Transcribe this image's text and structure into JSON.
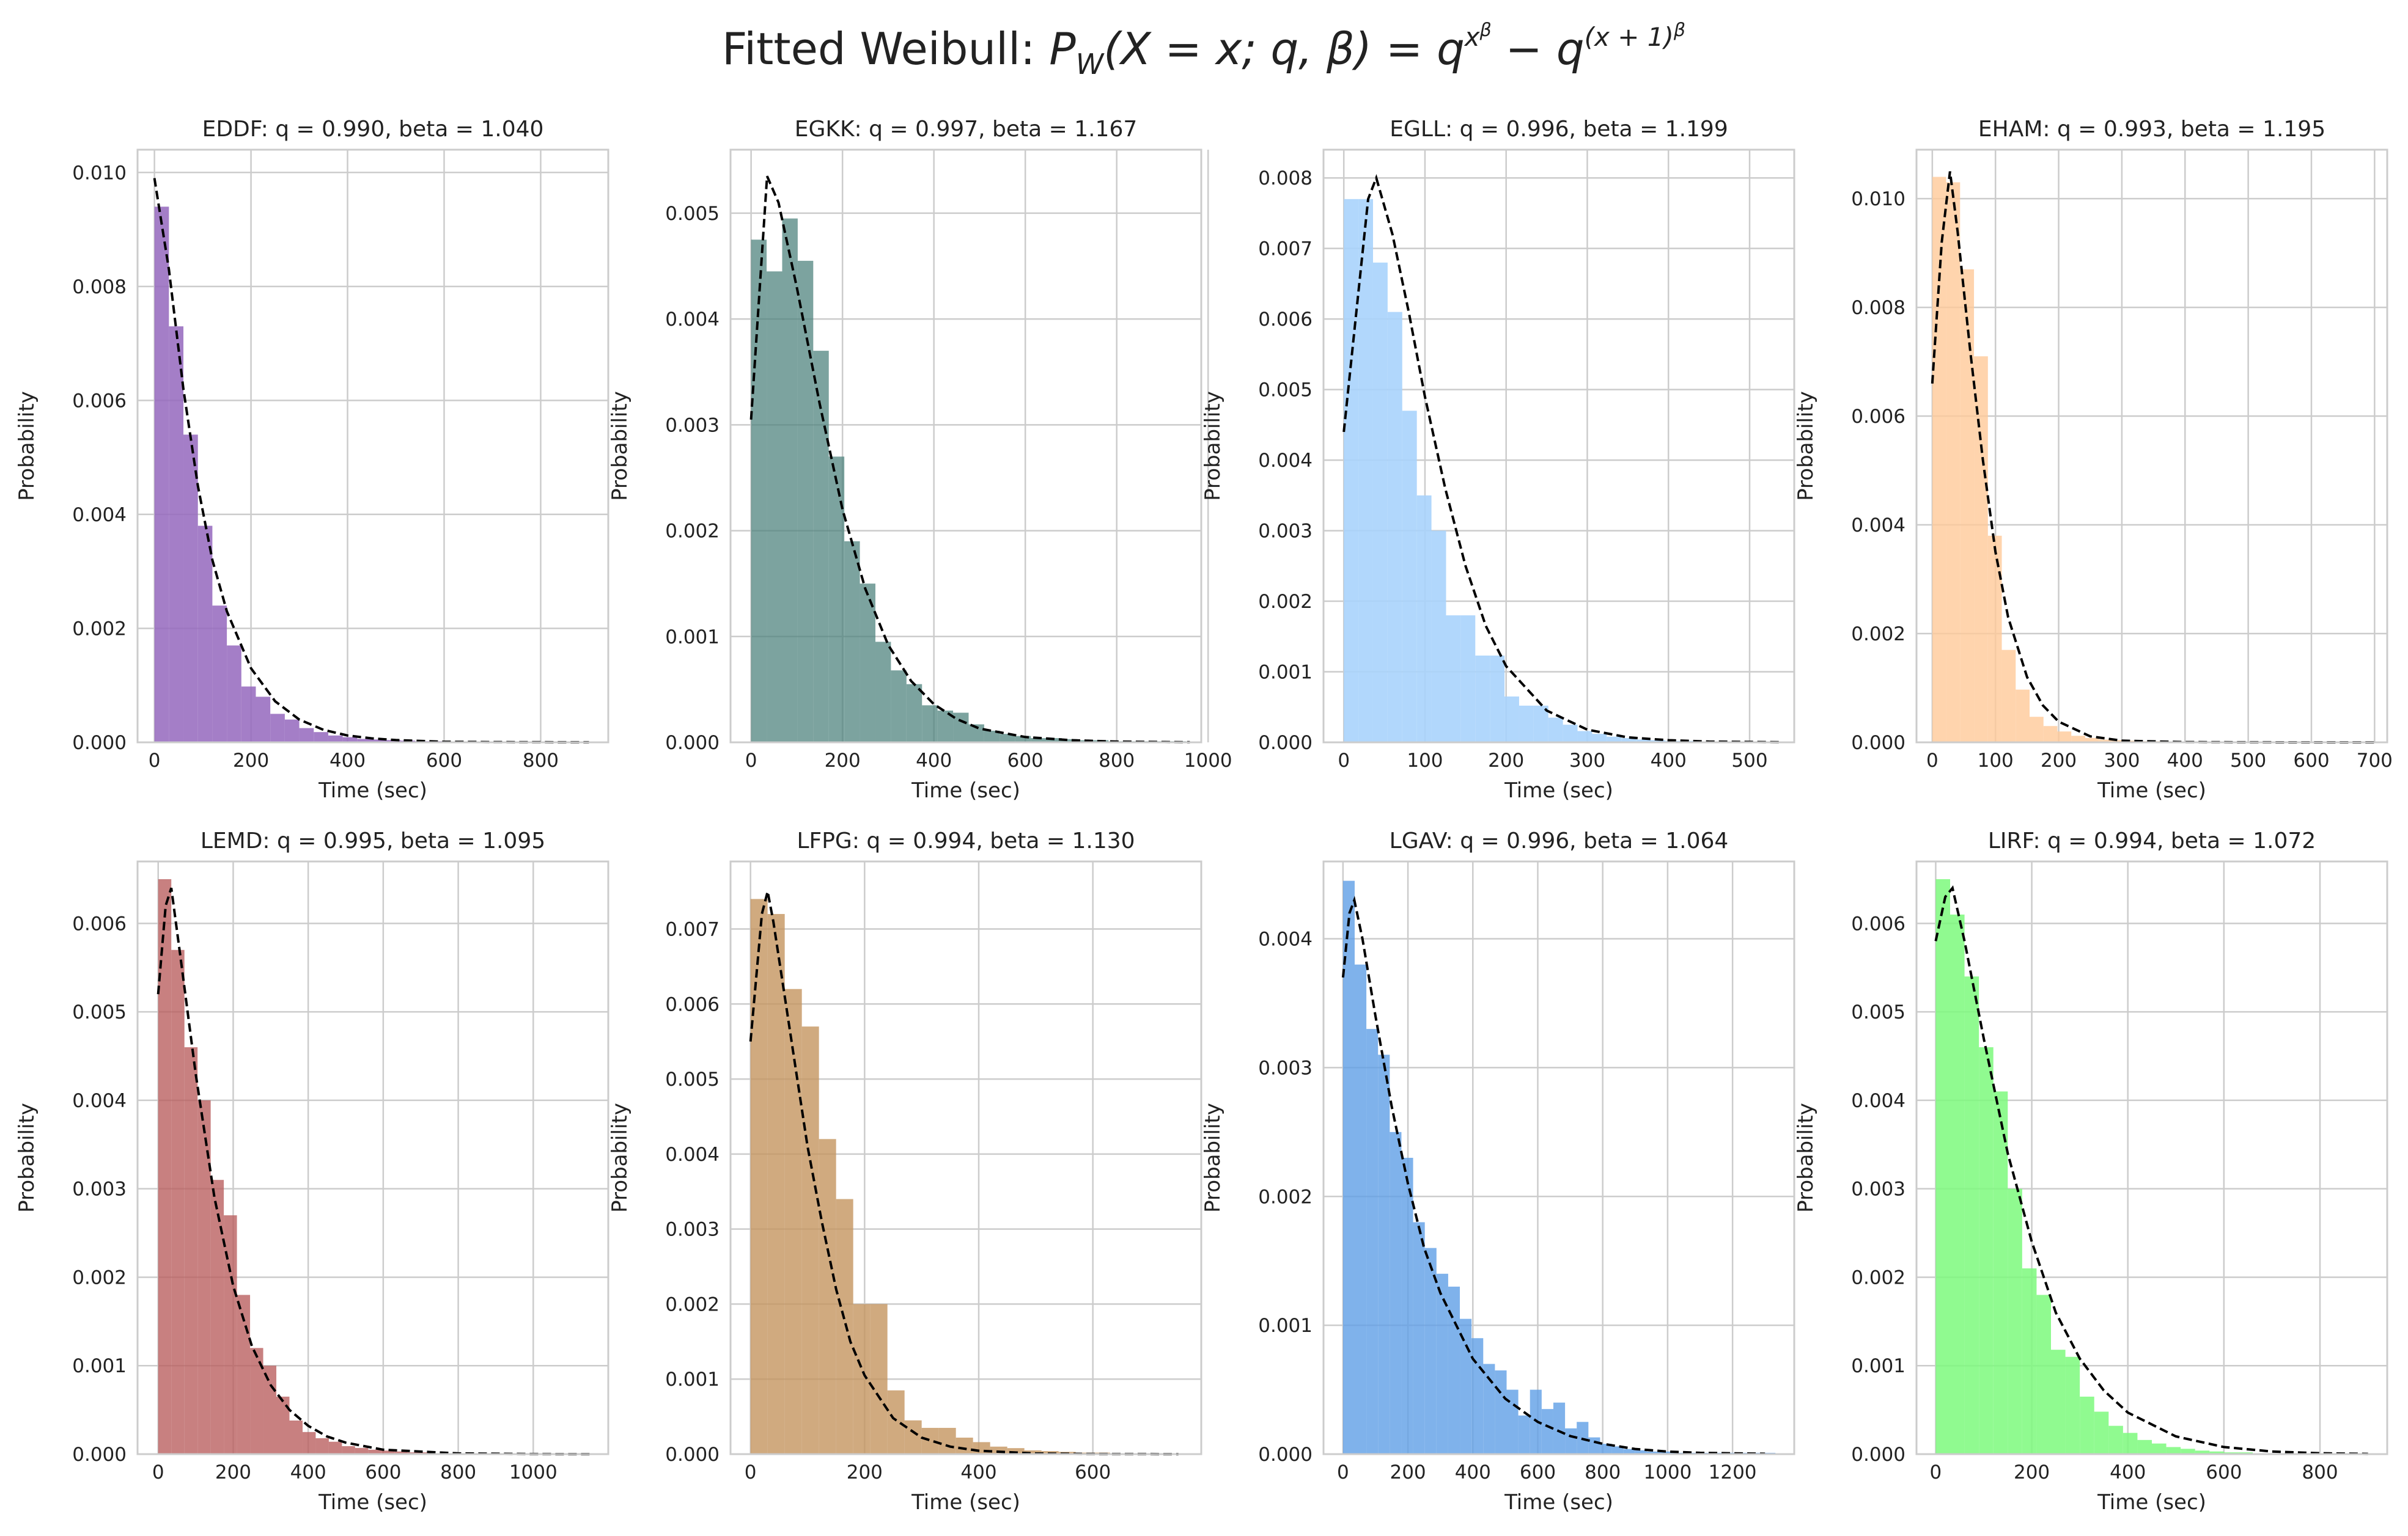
{
  "suptitle": {
    "prefix": "Fitted Weibull: ",
    "formula": "P_W(X = x; q, β) = q^(x^β) − q^((x + 1)^β)"
  },
  "chart_data": [
    {
      "type": "bar",
      "airport": "EDDF",
      "title": "EDDF: q = 0.990, beta = 1.040",
      "xlabel": "Time (sec)",
      "ylabel": "Probability",
      "color": "#9467bd",
      "alpha": 0.85,
      "xlim": [
        -35,
        940
      ],
      "ylim": [
        0,
        0.0104
      ],
      "xticks": [
        0,
        200,
        400,
        600,
        800
      ],
      "xtick_labels": [
        "0",
        "200",
        "400",
        "600",
        "800"
      ],
      "yticks": [
        0,
        0.002,
        0.004,
        0.006,
        0.008,
        0.01
      ],
      "ytick_labels": [
        "0.000",
        "0.002",
        "0.004",
        "0.006",
        "0.008",
        "0.010"
      ],
      "bin_width": 30,
      "bin_start": 0,
      "histogram": [
        0.0094,
        0.0073,
        0.0054,
        0.0038,
        0.0024,
        0.0017,
        0.00098,
        0.0008,
        0.0005,
        0.0004,
        0.00025,
        0.00018,
        0.00012,
        9e-05,
        6e-05,
        5e-05,
        4e-05,
        3e-05,
        2e-05,
        2e-05,
        1e-05,
        1e-05,
        1e-05,
        1e-05,
        5e-06,
        5e-06,
        5e-06,
        5e-06,
        5e-06,
        5e-06
      ],
      "fit": {
        "x": [
          0,
          30,
          60,
          90,
          120,
          150,
          200,
          250,
          300,
          350,
          400,
          450,
          500,
          600,
          700,
          800,
          900
        ],
        "y": [
          0.0099,
          0.0083,
          0.0062,
          0.0045,
          0.0032,
          0.0023,
          0.0013,
          0.00072,
          0.0004,
          0.00022,
          0.00012,
          7e-05,
          4e-05,
          1e-05,
          4e-06,
          2e-06,
          1e-06
        ]
      }
    },
    {
      "type": "bar",
      "airport": "EGKK",
      "title": "EGKK: q = 0.997, beta = 1.167",
      "xlabel": "Time (sec)",
      "ylabel": "Probability",
      "color": "#4a7f7a",
      "alpha": 0.72,
      "xlim": [
        -45,
        985
      ],
      "ylim": [
        0,
        0.0056
      ],
      "xticks": [
        0,
        200,
        400,
        600,
        800,
        1000
      ],
      "xtick_labels": [
        "0",
        "200",
        "400",
        "600",
        "800",
        "1000"
      ],
      "yticks": [
        0,
        0.001,
        0.002,
        0.003,
        0.004,
        0.005
      ],
      "ytick_labels": [
        "0.000",
        "0.001",
        "0.002",
        "0.003",
        "0.004",
        "0.005"
      ],
      "bin_width": 34,
      "bin_start": 0,
      "histogram": [
        0.00475,
        0.00445,
        0.00495,
        0.00455,
        0.0037,
        0.0027,
        0.0019,
        0.0015,
        0.00095,
        0.00068,
        0.00055,
        0.00035,
        0.0003,
        0.00028,
        0.00017,
        0.00011,
        8e-05,
        6e-05,
        4e-05,
        4e-05,
        3e-05,
        2e-05,
        2e-05,
        1e-05,
        1e-05,
        1e-05,
        1e-05,
        1e-05
      ],
      "fit": {
        "x": [
          0,
          35,
          60,
          100,
          150,
          200,
          250,
          300,
          350,
          400,
          450,
          500,
          600,
          700,
          800,
          900,
          960
        ],
        "y": [
          0.00305,
          0.00535,
          0.0051,
          0.0043,
          0.0032,
          0.0022,
          0.00145,
          0.00092,
          0.00058,
          0.00036,
          0.00022,
          0.00013,
          5e-05,
          2e-05,
          7e-06,
          3e-06,
          1e-06
        ]
      }
    },
    {
      "type": "bar",
      "airport": "EGLL",
      "title": "EGLL: q = 0.996, beta = 1.199",
      "xlabel": "Time (sec)",
      "ylabel": "Probability",
      "color": "#a8d3fc",
      "alpha": 0.9,
      "xlim": [
        -25,
        555
      ],
      "ylim": [
        0,
        0.0084
      ],
      "xticks": [
        0,
        100,
        200,
        300,
        400,
        500
      ],
      "xtick_labels": [
        "0",
        "100",
        "200",
        "300",
        "400",
        "500"
      ],
      "yticks": [
        0,
        0.001,
        0.002,
        0.003,
        0.004,
        0.005,
        0.006,
        0.007,
        0.008
      ],
      "ytick_labels": [
        "0.000",
        "0.001",
        "0.002",
        "0.003",
        "0.004",
        "0.005",
        "0.006",
        "0.007",
        "0.008"
      ],
      "bin_width": 18,
      "bin_start": 0,
      "histogram": [
        0.0077,
        0.0077,
        0.0068,
        0.0061,
        0.0047,
        0.0035,
        0.003,
        0.0018,
        0.0018,
        0.00123,
        0.00123,
        0.00065,
        0.00052,
        0.00052,
        0.00035,
        0.00025,
        0.00016,
        0.00012,
        8e-05,
        6e-05,
        4e-05,
        3e-05,
        2e-05,
        2e-05,
        1e-05,
        1e-05,
        1e-05,
        1e-05,
        1e-05,
        1e-05
      ],
      "fit": {
        "x": [
          0,
          30,
          40,
          60,
          80,
          100,
          125,
          150,
          175,
          200,
          250,
          300,
          350,
          400,
          450,
          540
        ],
        "y": [
          0.0044,
          0.0077,
          0.008,
          0.0072,
          0.0061,
          0.0049,
          0.0036,
          0.0025,
          0.00165,
          0.00108,
          0.00045,
          0.00018,
          7e-05,
          3e-05,
          1e-05,
          2e-06
        ]
      }
    },
    {
      "type": "bar",
      "airport": "EHAM",
      "title": "EHAM: q = 0.993, beta = 1.195",
      "xlabel": "Time (sec)",
      "ylabel": "Probability",
      "color": "#ffc999",
      "alpha": 0.8,
      "xlim": [
        -25,
        720
      ],
      "ylim": [
        0,
        0.0109
      ],
      "xticks": [
        0,
        100,
        200,
        300,
        400,
        500,
        600,
        700
      ],
      "xtick_labels": [
        "0",
        "100",
        "200",
        "300",
        "400",
        "500",
        "600",
        "700"
      ],
      "yticks": [
        0,
        0.002,
        0.004,
        0.006,
        0.008,
        0.01
      ],
      "ytick_labels": [
        "0.000",
        "0.002",
        "0.004",
        "0.006",
        "0.008",
        "0.010"
      ],
      "bin_width": 22,
      "bin_start": 0,
      "histogram": [
        0.0104,
        0.0103,
        0.0087,
        0.0071,
        0.0038,
        0.0017,
        0.00097,
        0.00047,
        0.0003,
        0.0002,
        0.00012,
        8e-05,
        5e-05,
        4e-05,
        3e-05,
        2e-05,
        2e-05,
        1e-05,
        1e-05,
        1e-05,
        1e-05,
        1e-05,
        1e-05,
        1e-05,
        1e-05,
        1e-05,
        1e-05,
        1e-05,
        1e-05,
        1e-05,
        1e-05
      ],
      "fit": {
        "x": [
          0,
          15,
          28,
          40,
          60,
          80,
          100,
          120,
          150,
          175,
          200,
          250,
          300,
          400,
          500,
          600,
          700
        ],
        "y": [
          0.0066,
          0.0092,
          0.0105,
          0.0094,
          0.0072,
          0.0052,
          0.0035,
          0.0023,
          0.0012,
          0.00068,
          0.00038,
          0.00011,
          3e-05,
          4e-06,
          1e-06,
          5e-07,
          2e-07
        ]
      }
    },
    {
      "type": "bar",
      "airport": "LEMD",
      "title": "LEMD: q = 0.995, beta = 1.095",
      "xlabel": "Time (sec)",
      "ylabel": "Probability",
      "color": "#b85c5c",
      "alpha": 0.78,
      "xlim": [
        -55,
        1200
      ],
      "ylim": [
        0,
        0.0067
      ],
      "xticks": [
        0,
        200,
        400,
        600,
        800,
        1000
      ],
      "xtick_labels": [
        "0",
        "200",
        "400",
        "600",
        "800",
        "1000"
      ],
      "yticks": [
        0,
        0.001,
        0.002,
        0.003,
        0.004,
        0.005,
        0.006
      ],
      "ytick_labels": [
        "0.000",
        "0.001",
        "0.002",
        "0.003",
        "0.004",
        "0.005",
        "0.006"
      ],
      "bin_width": 35,
      "bin_start": 0,
      "histogram": [
        0.0065,
        0.0057,
        0.0046,
        0.004,
        0.0031,
        0.0027,
        0.0018,
        0.0012,
        0.001,
        0.00065,
        0.00038,
        0.00025,
        0.00018,
        0.00014,
        9e-05,
        7e-05,
        5e-05,
        4e-05,
        3e-05,
        2e-05,
        2e-05,
        1e-05,
        1e-05,
        1e-05,
        1e-05,
        1e-05,
        1e-05,
        1e-05,
        1e-05,
        1e-05,
        1e-05,
        1e-05
      ],
      "fit": {
        "x": [
          0,
          20,
          35,
          60,
          100,
          150,
          200,
          250,
          300,
          350,
          400,
          450,
          500,
          600,
          800,
          1000,
          1150
        ],
        "y": [
          0.0052,
          0.0062,
          0.0064,
          0.0056,
          0.0043,
          0.0029,
          0.0019,
          0.00122,
          0.00078,
          0.0005,
          0.00032,
          0.0002,
          0.00013,
          5e-05,
          8e-06,
          1e-06,
          3e-07
        ]
      }
    },
    {
      "type": "bar",
      "airport": "LFPG",
      "title": "LFPG: q = 0.994, beta = 1.130",
      "xlabel": "Time (sec)",
      "ylabel": "Probability",
      "color": "#c4955f",
      "alpha": 0.8,
      "xlim": [
        -35,
        790
      ],
      "ylim": [
        0,
        0.0079
      ],
      "xticks": [
        0,
        200,
        400,
        600
      ],
      "xtick_labels": [
        "0",
        "200",
        "400",
        "600"
      ],
      "yticks": [
        0,
        0.001,
        0.002,
        0.003,
        0.004,
        0.005,
        0.006,
        0.007
      ],
      "ytick_labels": [
        "0.000",
        "0.001",
        "0.002",
        "0.003",
        "0.004",
        "0.005",
        "0.006",
        "0.007"
      ],
      "bin_width": 30,
      "bin_start": 0,
      "histogram": [
        0.0074,
        0.0072,
        0.0062,
        0.0057,
        0.0042,
        0.0034,
        0.002,
        0.002,
        0.00085,
        0.00045,
        0.00035,
        0.00035,
        0.00022,
        0.00016,
        0.0001,
        8e-05,
        5e-05,
        4e-05,
        3e-05,
        2e-05,
        2e-05,
        1e-05,
        1e-05,
        1e-05,
        1e-05
      ],
      "fit": {
        "x": [
          0,
          20,
          30,
          40,
          60,
          80,
          100,
          125,
          150,
          175,
          200,
          250,
          300,
          350,
          400,
          500,
          600,
          750
        ],
        "y": [
          0.0055,
          0.0072,
          0.0075,
          0.0071,
          0.0061,
          0.0051,
          0.0041,
          0.0031,
          0.0022,
          0.0015,
          0.00105,
          0.00048,
          0.00022,
          0.0001,
          4.5e-05,
          9e-06,
          2e-06,
          2e-07
        ]
      }
    },
    {
      "type": "bar",
      "airport": "LGAV",
      "title": "LGAV: q = 0.996, beta = 1.064",
      "xlabel": "Time (sec)",
      "ylabel": "Probability",
      "color": "#5f9fe6",
      "alpha": 0.8,
      "xlim": [
        -60,
        1390
      ],
      "ylim": [
        0,
        0.0046
      ],
      "xticks": [
        0,
        200,
        400,
        600,
        800,
        1000,
        1200
      ],
      "xtick_labels": [
        "0",
        "200",
        "400",
        "600",
        "800",
        "1000",
        "1200"
      ],
      "yticks": [
        0,
        0.001,
        0.002,
        0.003,
        0.004
      ],
      "ytick_labels": [
        "0.000",
        "0.001",
        "0.002",
        "0.003",
        "0.004"
      ],
      "bin_width": 36,
      "bin_start": 0,
      "histogram": [
        0.00445,
        0.0038,
        0.0033,
        0.0031,
        0.0025,
        0.0023,
        0.0018,
        0.0016,
        0.0014,
        0.0013,
        0.00105,
        0.0009,
        0.0007,
        0.00065,
        0.0005,
        0.0003,
        0.0005,
        0.00035,
        0.0004,
        0.0002,
        0.00025,
        0.00013,
        8e-05,
        6e-05,
        4e-05,
        3e-05,
        2e-05,
        2e-05,
        1e-05,
        1e-05,
        1e-05,
        1e-05,
        1e-05,
        1e-05,
        1e-05,
        1e-05,
        1e-05
      ],
      "fit": {
        "x": [
          0,
          20,
          35,
          60,
          100,
          150,
          200,
          250,
          300,
          400,
          500,
          600,
          700,
          800,
          900,
          1000,
          1100,
          1300
        ],
        "y": [
          0.0037,
          0.0042,
          0.0043,
          0.004,
          0.0034,
          0.0027,
          0.0021,
          0.0016,
          0.00125,
          0.00074,
          0.00043,
          0.00025,
          0.00014,
          8e-05,
          4e-05,
          2e-05,
          1e-05,
          3e-06
        ]
      }
    },
    {
      "type": "bar",
      "airport": "LIRF",
      "title": "LIRF: q = 0.994, beta = 1.072",
      "xlabel": "Time (sec)",
      "ylabel": "Probability",
      "color": "#7cf97c",
      "alpha": 0.85,
      "xlim": [
        -40,
        940
      ],
      "ylim": [
        0,
        0.0067
      ],
      "xticks": [
        0,
        200,
        400,
        600,
        800
      ],
      "xtick_labels": [
        "0",
        "200",
        "400",
        "600",
        "800"
      ],
      "yticks": [
        0,
        0.001,
        0.002,
        0.003,
        0.004,
        0.005,
        0.006
      ],
      "ytick_labels": [
        "0.000",
        "0.001",
        "0.002",
        "0.003",
        "0.004",
        "0.005",
        "0.006"
      ],
      "bin_width": 30,
      "bin_start": 0,
      "histogram": [
        0.0065,
        0.0061,
        0.0054,
        0.0046,
        0.0041,
        0.003,
        0.0021,
        0.0018,
        0.00118,
        0.0011,
        0.00065,
        0.00048,
        0.00032,
        0.00024,
        0.00016,
        0.00012,
        8e-05,
        6e-05,
        4e-05,
        3e-05,
        2e-05,
        2e-05,
        1e-05,
        1e-05,
        1e-05,
        1e-05,
        1e-05,
        1e-05,
        1e-05,
        1e-05
      ],
      "fit": {
        "x": [
          0,
          20,
          35,
          60,
          100,
          150,
          200,
          250,
          300,
          350,
          400,
          500,
          600,
          700,
          800,
          900
        ],
        "y": [
          0.0058,
          0.0063,
          0.0064,
          0.0058,
          0.0047,
          0.0034,
          0.0024,
          0.0016,
          0.00108,
          0.00072,
          0.00047,
          0.0002,
          8e-05,
          3e-05,
          1e-05,
          3e-06
        ]
      }
    }
  ]
}
